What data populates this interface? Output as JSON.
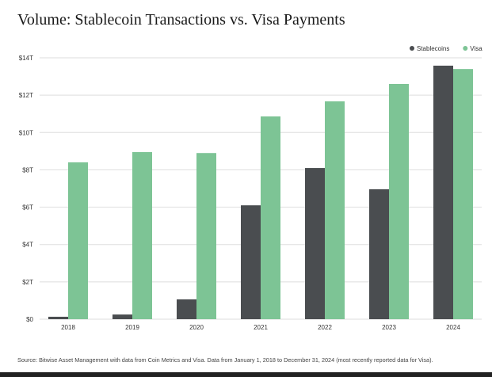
{
  "chart_data": {
    "type": "bar",
    "title": "Volume: Stablecoin Transactions vs. Visa Payments",
    "categories": [
      "2018",
      "2019",
      "2020",
      "2021",
      "2022",
      "2023",
      "2024"
    ],
    "series": [
      {
        "name": "Stablecoins",
        "color": "#4a4d50",
        "values": [
          0.13,
          0.25,
          1.06,
          6.1,
          8.1,
          6.96,
          13.58
        ]
      },
      {
        "name": "Visa",
        "color": "#7dc495",
        "values": [
          8.4,
          8.95,
          8.9,
          10.86,
          11.67,
          12.6,
          13.4
        ]
      }
    ],
    "ylim": [
      0,
      14
    ],
    "yticks": [
      0,
      2,
      4,
      6,
      8,
      10,
      12,
      14
    ],
    "ytick_labels": [
      "$0",
      "$2T",
      "$4T",
      "$6T",
      "$8T",
      "$10T",
      "$12T",
      "$14T"
    ],
    "xlabel": "",
    "ylabel": "",
    "unit": "trillion USD",
    "grid": true,
    "legend_position": "top-right"
  },
  "source": "Source: Bitwise Asset Management with data from Coin Metrics and Visa. Data from January 1, 2018 to December 31, 2024 (most recently reported data for Visa)."
}
